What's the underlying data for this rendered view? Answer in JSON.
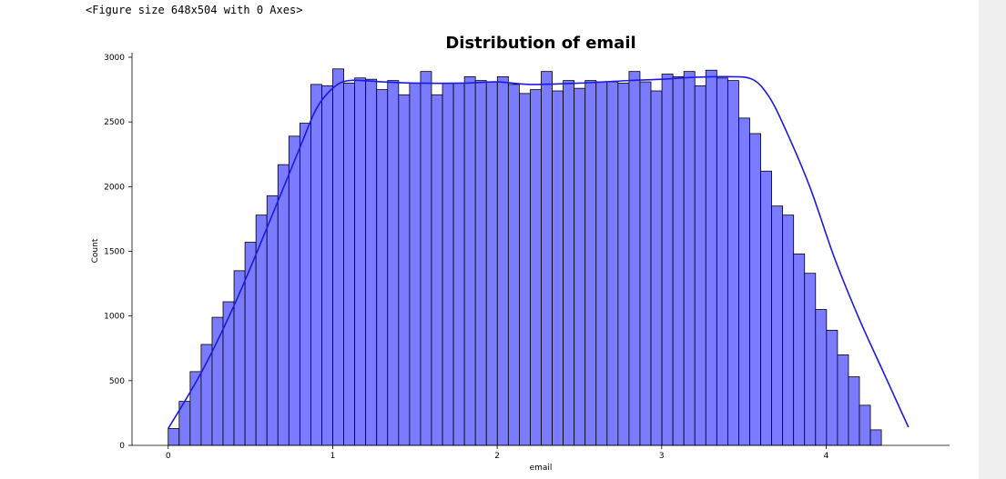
{
  "output": {
    "text": "<Figure size 648x504 with 0 Axes>"
  },
  "chart_data": {
    "type": "bar",
    "title": "Distribution of email",
    "xlabel": "email",
    "ylabel": "Count",
    "xlim": [
      -0.22,
      4.75
    ],
    "ylim": [
      0,
      3000
    ],
    "xticks": [
      0,
      1,
      2,
      3,
      4
    ],
    "yticks": [
      0,
      500,
      1000,
      1500,
      2000,
      2500,
      3000
    ],
    "bin_start": 0.0,
    "bin_width": 0.0667,
    "bar_color": "#7b7bff",
    "bar_edge_color": "#000000",
    "kde_color": "#1a1ae6",
    "grid": false,
    "legend": "none",
    "values": [
      130,
      340,
      570,
      780,
      990,
      1110,
      1350,
      1570,
      1780,
      1930,
      2170,
      2390,
      2490,
      2790,
      2780,
      2910,
      2800,
      2840,
      2830,
      2750,
      2820,
      2710,
      2800,
      2890,
      2710,
      2800,
      2800,
      2850,
      2820,
      2810,
      2850,
      2790,
      2720,
      2750,
      2890,
      2740,
      2820,
      2760,
      2820,
      2810,
      2810,
      2800,
      2890,
      2810,
      2740,
      2870,
      2850,
      2890,
      2780,
      2900,
      2840,
      2820,
      2530,
      2410,
      2120,
      1850,
      1780,
      1480,
      1330,
      1050,
      890,
      700,
      530,
      310,
      120
    ],
    "kde": [
      [
        0.0,
        130
      ],
      [
        0.2,
        560
      ],
      [
        0.4,
        1080
      ],
      [
        0.6,
        1680
      ],
      [
        0.8,
        2300
      ],
      [
        0.9,
        2600
      ],
      [
        1.0,
        2760
      ],
      [
        1.1,
        2820
      ],
      [
        1.3,
        2810
      ],
      [
        1.5,
        2800
      ],
      [
        1.8,
        2800
      ],
      [
        2.0,
        2810
      ],
      [
        2.2,
        2790
      ],
      [
        2.5,
        2800
      ],
      [
        2.8,
        2820
      ],
      [
        3.0,
        2830
      ],
      [
        3.2,
        2845
      ],
      [
        3.4,
        2850
      ],
      [
        3.55,
        2830
      ],
      [
        3.65,
        2700
      ],
      [
        3.75,
        2450
      ],
      [
        3.9,
        2000
      ],
      [
        4.05,
        1450
      ],
      [
        4.2,
        980
      ],
      [
        4.35,
        560
      ],
      [
        4.45,
        280
      ],
      [
        4.5,
        140
      ]
    ]
  }
}
